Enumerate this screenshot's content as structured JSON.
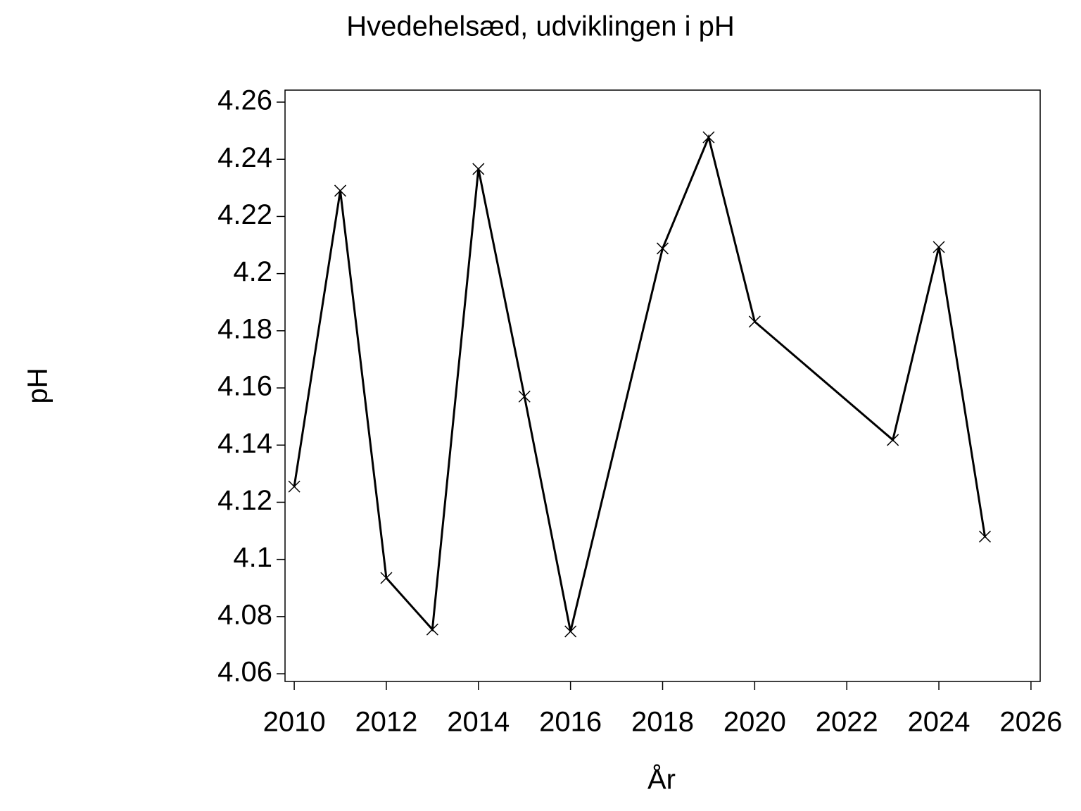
{
  "chart_data": {
    "type": "line",
    "title": "Hvedehelsæd, udviklingen i pH",
    "x_label": "År",
    "y_label": "pH",
    "x": [
      2010,
      2011,
      2012,
      2013,
      2014,
      2015,
      2016,
      2018,
      2019,
      2020,
      2023,
      2024,
      2025
    ],
    "series": [
      {
        "name": "pH",
        "color": "#000000",
        "values": [
          4.1255,
          4.229,
          4.0935,
          4.0755,
          4.2366,
          4.157,
          4.0748,
          4.2088,
          4.2477,
          4.1832,
          4.1418,
          4.2093,
          4.108
        ]
      }
    ],
    "xlim": [
      2009.8,
      2026.2
    ],
    "xticks": [
      2010,
      2012,
      2014,
      2016,
      2018,
      2020,
      2022,
      2024,
      2026
    ],
    "ylim": [
      4.0573,
      4.2642
    ],
    "yticks": [
      4.06,
      4.08,
      4.1,
      4.12,
      4.14,
      4.16,
      4.18,
      4.2,
      4.22,
      4.24,
      4.26
    ],
    "marker": "x"
  }
}
